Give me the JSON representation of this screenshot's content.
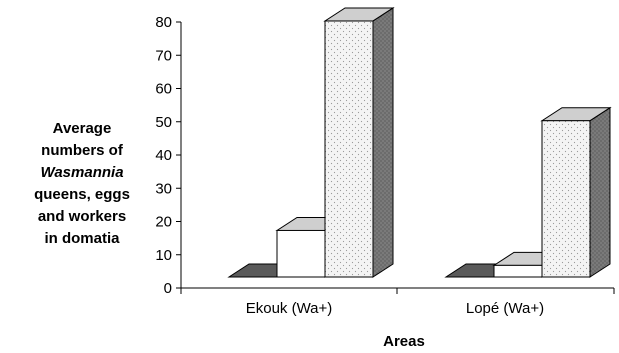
{
  "chart_data": {
    "type": "bar",
    "title": "",
    "xlabel": "Areas",
    "ylabel_lines": [
      "Average",
      "numbers of",
      "Wasmannia",
      "queens, eggs",
      "and workers",
      "in domatia"
    ],
    "ylabel_italic_line": "Wasmannia",
    "ylim": [
      0,
      80
    ],
    "yticks": [
      "0",
      "10",
      "20",
      "30",
      "40",
      "50",
      "60",
      "70",
      "80"
    ],
    "categories": [
      "Ekouk (Wa+)",
      "Lopé (Wa+)"
    ],
    "series": [
      {
        "values": [
          0,
          0
        ],
        "color": "#404040"
      },
      {
        "values": [
          14,
          3.5
        ],
        "color": "#ffffff"
      },
      {
        "values": [
          77,
          47
        ],
        "color": "#f4f4f4"
      }
    ],
    "grid": false,
    "legend": "none"
  }
}
